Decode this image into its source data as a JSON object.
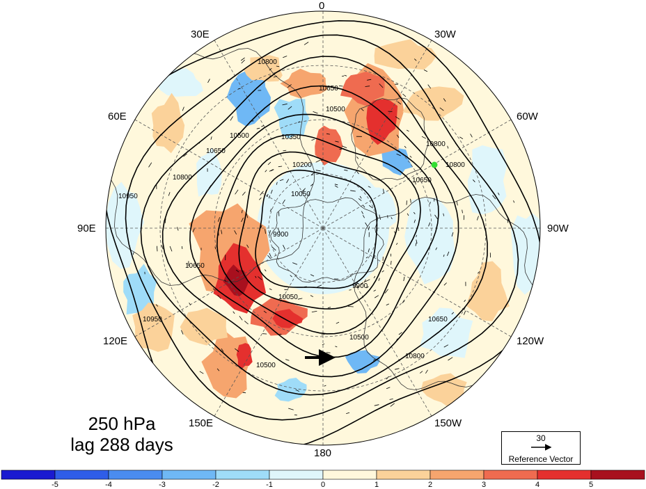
{
  "level_label": "250 hPa",
  "lag_label": "lag 288 days",
  "longitude_labels": {
    "lon_0": "0",
    "lon_30w": "30W",
    "lon_60w": "60W",
    "lon_90w": "90W",
    "lon_120w": "120W",
    "lon_150w": "150W",
    "lon_180": "180",
    "lon_150e": "150E",
    "lon_120e": "120E",
    "lon_90e": "90E",
    "lon_60e": "60E",
    "lon_30e": "30E"
  },
  "contour_labels": [
    "10950",
    "10800",
    "10650",
    "10500",
    "10350",
    "10200",
    "10050",
    "9900",
    "10800",
    "10650",
    "10500",
    "10050",
    "9900",
    "10650",
    "10500",
    "10800",
    "10950",
    "10650",
    "10800",
    "10500",
    "10650",
    "10800"
  ],
  "reference_vector": {
    "magnitude": "30",
    "label": "Reference Vector"
  },
  "colorbar": {
    "ticks": [
      "-5",
      "-4",
      "-3",
      "-2",
      "-1",
      "0",
      "1",
      "2",
      "3",
      "4",
      "5"
    ],
    "colors": [
      "#1a1ad0",
      "#2f5de8",
      "#4a8cf0",
      "#6fb8f5",
      "#9fdcf8",
      "#dff6fb",
      "#fff8dc",
      "#fbd29a",
      "#f6a56e",
      "#ef6b50",
      "#e4302e",
      "#a8101e"
    ]
  },
  "marker_color": "#33dd33"
}
